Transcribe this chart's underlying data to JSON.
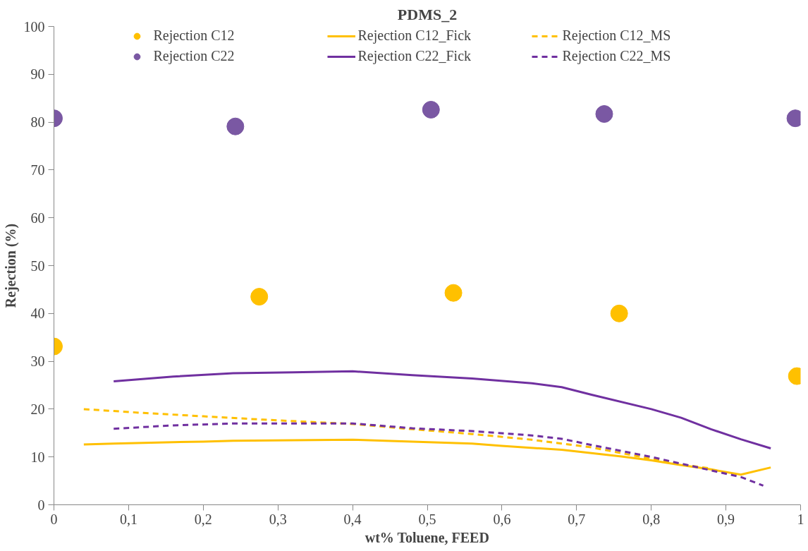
{
  "chart_data": {
    "type": "line",
    "title": "PDMS_2",
    "xlabel": "wt% Toluene, FEED",
    "ylabel": "Rejection (%)",
    "xlim": [
      0,
      1
    ],
    "ylim": [
      0,
      100
    ],
    "xticks": [
      0,
      {
        "value": 0.1,
        "label": "0,1"
      },
      {
        "value": 0.2,
        "label": "0,2"
      },
      {
        "value": 0.3,
        "label": "0,3"
      },
      {
        "value": 0.4,
        "label": "0,4"
      },
      {
        "value": 0.5,
        "label": "0,5"
      },
      {
        "value": 0.6,
        "label": "0,6"
      },
      {
        "value": 0.7,
        "label": "0,7"
      },
      {
        "value": 0.8,
        "label": "0,8"
      },
      {
        "value": 0.9,
        "label": "0,9"
      },
      1
    ],
    "yticks": [
      0,
      10,
      20,
      30,
      40,
      50,
      60,
      70,
      80,
      90,
      100
    ],
    "grid": false,
    "legend": "top",
    "series": [
      {
        "name": "Rejection C12",
        "type": "scatter",
        "marker": "circle",
        "color": "#ffc000",
        "x": [
          0,
          0.275,
          0.535,
          0.757,
          0.995
        ],
        "values": [
          33.1,
          43.5,
          44.3,
          40,
          26.9
        ]
      },
      {
        "name": "Rejection C12_Fick",
        "line_style": "solid",
        "color": "#ffc000",
        "x": [
          0.04,
          0.08,
          0.16,
          0.2,
          0.24,
          0.32,
          0.4,
          0.48,
          0.56,
          0.6,
          0.68,
          0.76,
          0.8,
          0.84,
          0.88,
          0.92,
          0.96
        ],
        "values": [
          12.6,
          12.8,
          13.1,
          13.2,
          13.4,
          13.5,
          13.6,
          13.2,
          12.8,
          12.3,
          11.5,
          10.1,
          9.3,
          8.3,
          7.4,
          6.3,
          7.8
        ]
      },
      {
        "name": "Rejection C12_MS",
        "line_style": "dashed",
        "color": "#ffc000",
        "x": [
          0.04,
          0.12,
          0.2,
          0.28,
          0.36,
          0.4,
          0.48,
          0.56,
          0.64,
          0.72,
          0.8,
          0.84,
          0.88
        ],
        "values": [
          20,
          19.2,
          18.5,
          17.8,
          17.2,
          16.9,
          15.8,
          14.8,
          13.6,
          12,
          9.6,
          8.4,
          7.6
        ]
      },
      {
        "name": "Rejection C22",
        "type": "scatter",
        "marker": "circle",
        "color": "#7a58a3",
        "x": [
          0,
          0.243,
          0.505,
          0.737,
          0.993
        ],
        "values": [
          80.8,
          79.1,
          82.6,
          81.7,
          80.8
        ]
      },
      {
        "name": "Rejection C22_Fick",
        "line_style": "solid",
        "color": "#7030a0",
        "x": [
          0.08,
          0.16,
          0.24,
          0.32,
          0.4,
          0.48,
          0.56,
          0.64,
          0.68,
          0.72,
          0.8,
          0.84,
          0.88,
          0.92,
          0.96
        ],
        "values": [
          25.8,
          26.8,
          27.5,
          27.7,
          27.9,
          27.1,
          26.4,
          25.4,
          24.6,
          23,
          20,
          18.2,
          15.8,
          13.7,
          11.8
        ]
      },
      {
        "name": "Rejection C22_MS",
        "line_style": "dashed",
        "color": "#7030a0",
        "x": [
          0.08,
          0.16,
          0.24,
          0.32,
          0.4,
          0.48,
          0.56,
          0.64,
          0.68,
          0.72,
          0.8,
          0.84,
          0.88,
          0.92,
          0.95
        ],
        "values": [
          15.9,
          16.6,
          17,
          17,
          17,
          16,
          15.4,
          14.5,
          13.8,
          12.5,
          10,
          8.6,
          7.2,
          5.8,
          4
        ]
      }
    ]
  }
}
